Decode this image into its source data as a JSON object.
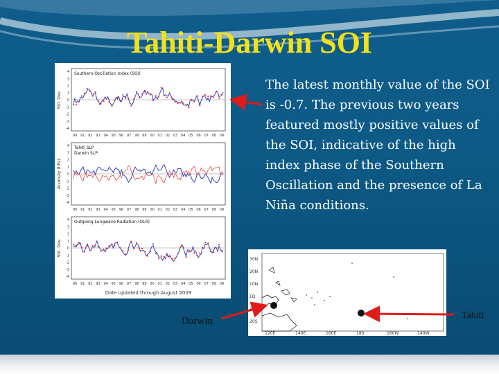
{
  "slide": {
    "title": "Tahiti-Darwin SOI",
    "body": "The latest monthly value of the SOI is -0.7. The previous two years featured mostly positive values of the SOI, indicative of the high index phase of the Southern Oscillation and the presence of La Niña conditions."
  },
  "chart": {
    "x_ticks": [
      "90",
      "91",
      "92",
      "93",
      "94",
      "95",
      "96",
      "97",
      "98",
      "99",
      "00",
      "01",
      "02",
      "03",
      "04",
      "05",
      "06",
      "07",
      "08",
      "09"
    ],
    "footer": "Date updated through August 2009",
    "panels": [
      {
        "title": "Southern Oscillation Index (SOI)",
        "ylabel": "Std. Dev.",
        "yticks": [
          "4",
          "3",
          "2",
          "1",
          "0",
          "-1",
          "-2",
          "-3",
          "-4"
        ]
      },
      {
        "title": "Tahiti SLP",
        "title2": "Darwin SLP",
        "ylabel": "Anomaly (hPa)",
        "yticks": [
          "4",
          "3",
          "2",
          "1",
          "0",
          "-1",
          "-2",
          "-3",
          "-4"
        ]
      },
      {
        "title": "Outgoing Longwave Radiation (OLR)",
        "ylabel": "Std. Dev.",
        "yticks": [
          "4",
          "3",
          "2",
          "1",
          "0",
          "-1",
          "-2",
          "-3",
          "-4"
        ]
      }
    ]
  },
  "map": {
    "lat_labels": [
      "30N",
      "20N",
      "10N",
      "EQ",
      "10S",
      "20S"
    ],
    "lon_labels": [
      "120E",
      "140E",
      "160E",
      "180",
      "160W",
      "140W"
    ]
  },
  "labels": {
    "darwin": "Darwin",
    "tahiti": "Tahiti"
  },
  "colors": {
    "title": "#f2e11a",
    "arrow": "#e01b1b",
    "soi_line": "#1f2fb5",
    "soi_dots": "#e0342a"
  }
}
